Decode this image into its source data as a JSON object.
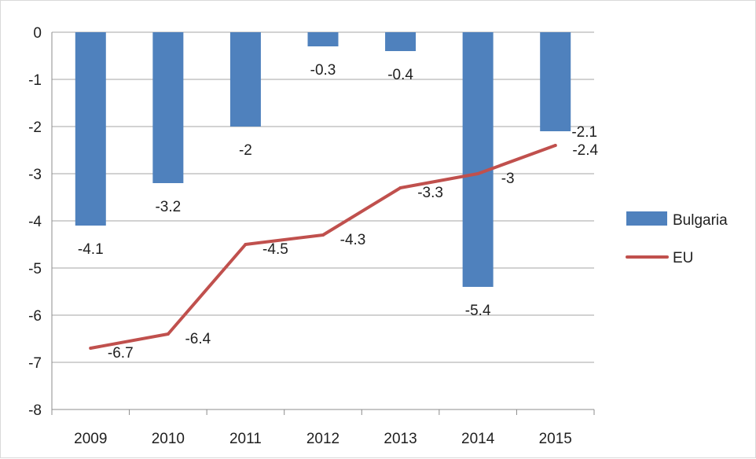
{
  "chart_data": {
    "type": "bar",
    "title": "",
    "xlabel": "",
    "ylabel": "",
    "categories": [
      "2009",
      "2010",
      "2011",
      "2012",
      "2013",
      "2014",
      "2015"
    ],
    "ylim": [
      -8,
      0
    ],
    "yticks": [
      0,
      -1,
      -2,
      -3,
      -4,
      -5,
      -6,
      -7,
      -8
    ],
    "grid": true,
    "legend_position": "right",
    "series": [
      {
        "name": "Bulgaria",
        "type": "bar",
        "color": "#4f81bd",
        "values": [
          -4.1,
          -3.2,
          -2,
          -0.3,
          -0.4,
          -5.4,
          -2.1
        ],
        "labels": [
          "-4.1",
          "-3.2",
          "-2",
          "-0.3",
          "-0.4",
          "-5.4",
          "-2.1"
        ]
      },
      {
        "name": "EU",
        "type": "line",
        "color": "#c0504d",
        "values": [
          -6.7,
          -6.4,
          -4.5,
          -4.3,
          -3.3,
          -3,
          -2.4
        ],
        "labels": [
          "-6.7",
          "-6.4",
          "-4.5",
          "-4.3",
          "-3.3",
          "-3",
          "-2.4"
        ]
      }
    ]
  }
}
